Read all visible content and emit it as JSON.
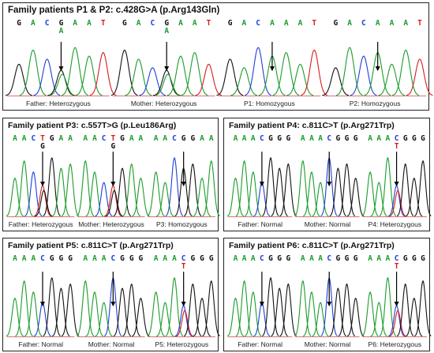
{
  "colors": {
    "A": "#1a9c2a",
    "C": "#1f3fd6",
    "G": "#111111",
    "T": "#d81b1b",
    "frame": "#222222"
  },
  "panels": [
    {
      "id": "p1",
      "title": "Family patients P1 & P2: c.428G>A (p.Arg143Gln)",
      "traces": [
        {
          "seq": "GACGAAT",
          "called": "A",
          "label": "Father: Heterozygous",
          "peaks": [
            "G",
            "A",
            "C",
            "G/A",
            "A",
            "A",
            "T"
          ]
        },
        {
          "seq": "GACGAAT",
          "called": "A",
          "label": "Mother: Heterozygous",
          "peaks": [
            "G",
            "A",
            "C",
            "G/A",
            "A",
            "A",
            "T"
          ]
        },
        {
          "seq": "GACAAAT",
          "called": "",
          "label": "P1: Homozygous",
          "peaks": [
            "G",
            "A",
            "C",
            "A",
            "A",
            "A",
            "T"
          ]
        },
        {
          "seq": "GACAAAT",
          "called": "",
          "label": "P2: Homozygous",
          "peaks": [
            "G",
            "A",
            "C",
            "A",
            "A",
            "A",
            "T"
          ]
        }
      ]
    },
    {
      "id": "p2",
      "title": "Family patient P3: c.557T>G (p.Leu186Arg)",
      "traces": [
        {
          "seq": "AACTGAA",
          "called": "G",
          "label": "Father: Heterozygous",
          "peaks": [
            "A",
            "A",
            "C",
            "T/G",
            "G",
            "A",
            "A"
          ]
        },
        {
          "seq": "AACTGAA",
          "called": "G",
          "label": "Mother: Heterozygous",
          "peaks": [
            "A",
            "A",
            "C",
            "T/G",
            "G",
            "A",
            "A"
          ]
        },
        {
          "seq": "AACGGAA",
          "called": "",
          "label": "P3: Homozygous",
          "peaks": [
            "A",
            "A",
            "C",
            "G",
            "G",
            "A",
            "A"
          ]
        }
      ]
    },
    {
      "id": "p3",
      "title": "Family patient P4: c.811C>T (p.Arg271Trp)",
      "traces": [
        {
          "seq": "AAACGGG",
          "called": "",
          "label": "Father: Normal",
          "peaks": [
            "A",
            "A",
            "A",
            "C",
            "G",
            "G",
            "G"
          ]
        },
        {
          "seq": "AAACGGG",
          "called": "",
          "label": "Mother: Normal",
          "peaks": [
            "A",
            "A",
            "A",
            "C",
            "G",
            "G",
            "G"
          ]
        },
        {
          "seq": "AAACGGG",
          "called": "T",
          "label": "P4: Heterozygous",
          "peaks": [
            "A",
            "A",
            "A",
            "C/T",
            "G",
            "G",
            "G"
          ]
        }
      ]
    },
    {
      "id": "p4",
      "title": "Family patient P5: c.811C>T (p.Arg271Trp)",
      "traces": [
        {
          "seq": "AAACGGG",
          "called": "",
          "label": "Father: Normal",
          "peaks": [
            "A",
            "A",
            "A",
            "C",
            "G",
            "G",
            "G"
          ]
        },
        {
          "seq": "AAACGGG",
          "called": "",
          "label": "Mother: Normal",
          "peaks": [
            "A",
            "A",
            "A",
            "C",
            "G",
            "G",
            "G"
          ]
        },
        {
          "seq": "AAACGGG",
          "called": "T",
          "label": "P5: Heterozygous",
          "peaks": [
            "A",
            "A",
            "A",
            "C/T",
            "G",
            "G",
            "G"
          ]
        }
      ]
    },
    {
      "id": "p5",
      "title": "Family patient P6: c.811C>T (p.Arg271Trp)",
      "traces": [
        {
          "seq": "AAACGGG",
          "called": "",
          "label": "Father: Normal",
          "peaks": [
            "A",
            "A",
            "A",
            "C",
            "G",
            "G",
            "G"
          ]
        },
        {
          "seq": "AAACGGG",
          "called": "",
          "label": "Mother: Normal",
          "peaks": [
            "A",
            "A",
            "A",
            "C",
            "G",
            "G",
            "G"
          ]
        },
        {
          "seq": "AAACGGG",
          "called": "T",
          "label": "P6: Heterozygous",
          "peaks": [
            "A",
            "A",
            "A",
            "C/T",
            "G",
            "G",
            "G"
          ]
        }
      ]
    }
  ]
}
